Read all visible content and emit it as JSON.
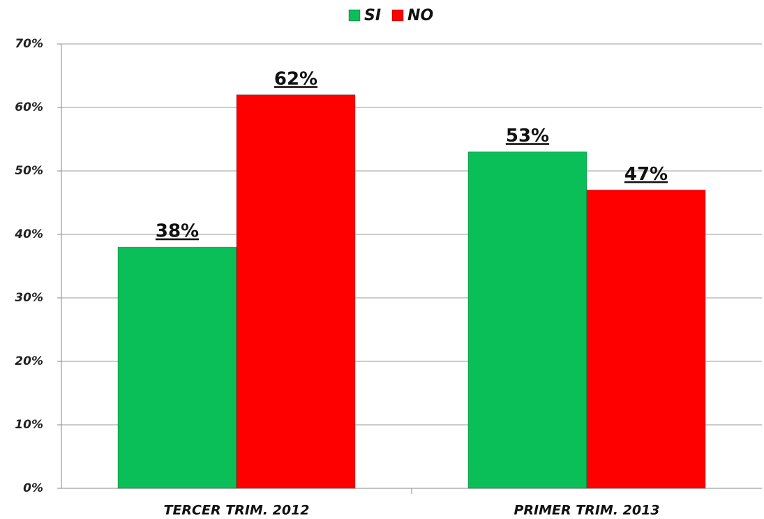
{
  "chart_data": {
    "type": "bar",
    "categories": [
      "TERCER TRIM. 2012",
      "PRIMER TRIM. 2013"
    ],
    "series": [
      {
        "name": "SI",
        "color": "#0bbf58",
        "values": [
          38,
          53
        ],
        "value_labels": [
          "38%",
          "53%"
        ]
      },
      {
        "name": "NO",
        "color": "#ff0000",
        "values": [
          62,
          47
        ],
        "value_labels": [
          "62%",
          "47%"
        ]
      }
    ],
    "ylim": [
      0,
      70
    ],
    "yticks": [
      {
        "value": 0,
        "label": "0%"
      },
      {
        "value": 10,
        "label": "10%"
      },
      {
        "value": 20,
        "label": "20%"
      },
      {
        "value": 30,
        "label": "30%"
      },
      {
        "value": 40,
        "label": "40%"
      },
      {
        "value": 50,
        "label": "50%"
      },
      {
        "value": 60,
        "label": "60%"
      },
      {
        "value": 70,
        "label": "70%"
      }
    ],
    "grid": true,
    "legend": "top"
  }
}
